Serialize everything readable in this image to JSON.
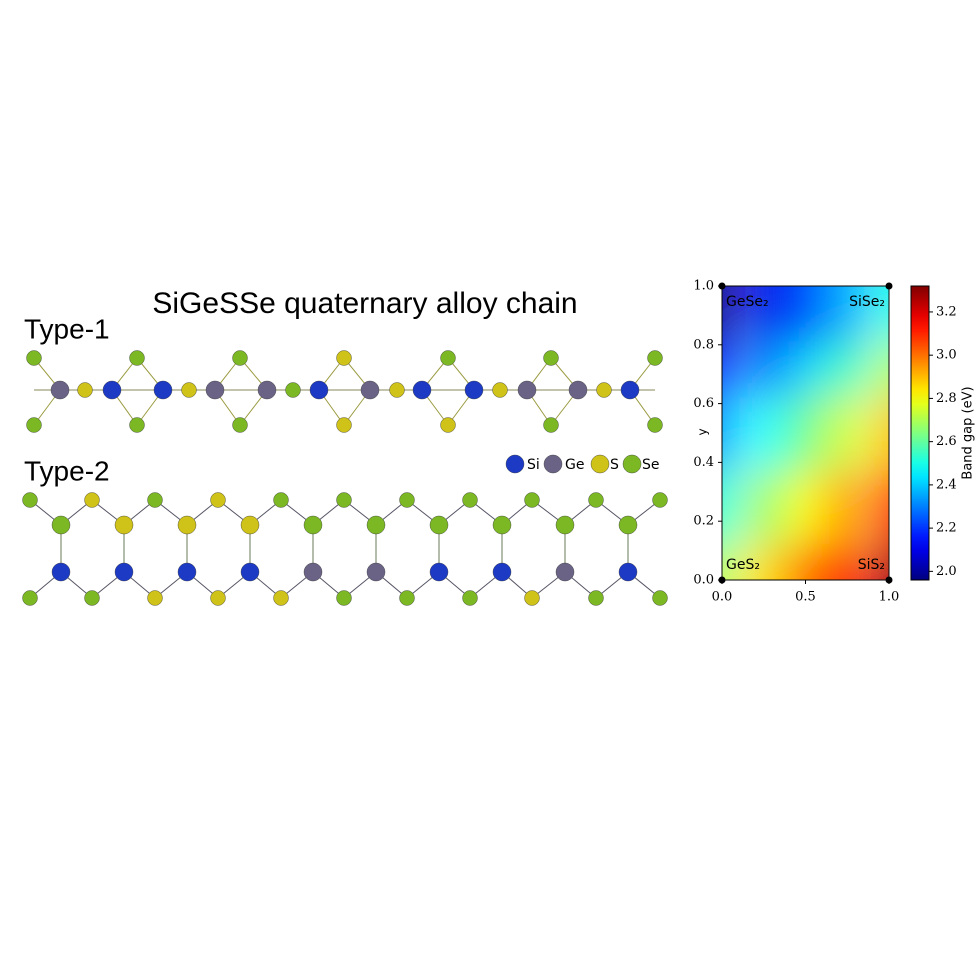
{
  "title": "SiGeSSe quaternary alloy chain",
  "structures": [
    {
      "label": "Type-1"
    },
    {
      "label": "Type-2"
    }
  ],
  "legend": [
    "Si",
    "Ge",
    "S",
    "Se"
  ],
  "chart_data": {
    "type": "heatmap",
    "x": [
      0,
      0.25,
      0.5,
      0.75,
      1
    ],
    "y": [
      0,
      0.25,
      0.5,
      0.75,
      1
    ],
    "z": [
      [
        2.7,
        2.85,
        3.0,
        3.15,
        3.3
      ],
      [
        2.52,
        2.66,
        2.81,
        2.95,
        3.1
      ],
      [
        2.33,
        2.47,
        2.62,
        2.76,
        2.9
      ],
      [
        2.15,
        2.28,
        2.42,
        2.56,
        2.7
      ],
      [
        1.96,
        2.1,
        2.23,
        2.37,
        2.5
      ]
    ],
    "colormap": "jet",
    "xlim": [
      0,
      1
    ],
    "ylim": [
      0,
      1
    ],
    "xticks": [
      {
        "value": 0,
        "label": "0.0"
      },
      {
        "value": 0.5,
        "label": "0.5"
      },
      {
        "value": 1,
        "label": "1.0"
      }
    ],
    "yticks": [
      {
        "value": 0,
        "label": "0.0"
      },
      {
        "value": 0.2,
        "label": "0.2"
      },
      {
        "value": 0.4,
        "label": "0.4"
      },
      {
        "value": 0.6,
        "label": "0.6"
      },
      {
        "value": 0.8,
        "label": "0.8"
      },
      {
        "value": 1,
        "label": "1.0"
      }
    ],
    "ylabel": "y",
    "annotations": [
      "GeSe₂",
      "SiSe₂",
      "GeS₂",
      "SiS₂"
    ],
    "colorbar": {
      "label": "Band gap (eV)",
      "lim": [
        1.96,
        3.32
      ],
      "ticks": [
        {
          "value": 2.0,
          "label": "2.0"
        },
        {
          "value": 2.2,
          "label": "2.2"
        },
        {
          "value": 2.4,
          "label": "2.4"
        },
        {
          "value": 2.6,
          "label": "2.6"
        },
        {
          "value": 2.8,
          "label": "2.8"
        },
        {
          "value": 3.0,
          "label": "3.0"
        },
        {
          "value": 3.2,
          "label": "3.2"
        }
      ]
    }
  }
}
